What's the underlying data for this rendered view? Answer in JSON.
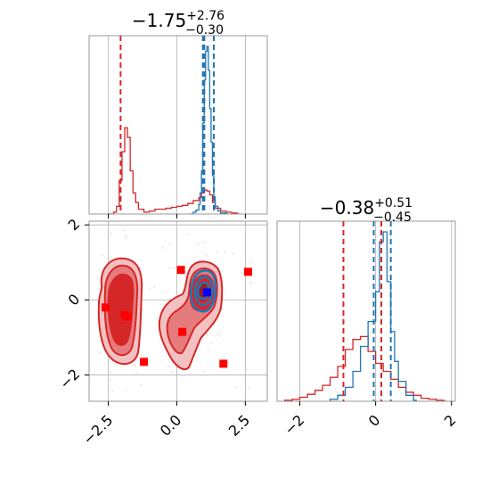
{
  "colors": {
    "red": "#d62728",
    "blue": "#1f77b4",
    "marker_red": "#ff0000",
    "marker_blue": "#0000ff",
    "grid": "#b0b0b0",
    "scatter": "#f4a6d8"
  },
  "chart_data": [
    {
      "type": "histogram",
      "panel": "top-left",
      "title": {
        "main": "−1.75",
        "sup": "+2.76",
        "sub": "−0.30"
      },
      "xlim": [
        -3.2,
        3.3
      ],
      "grid": true,
      "red_quantile_lines_x": [
        -2.05,
        1.0
      ],
      "blue_quantile_lines_x": [
        0.95,
        1.0,
        1.35
      ],
      "red_series_bins_x": [
        -2.5,
        -2.3,
        -2.2,
        -2.1,
        -2.0,
        -1.9,
        -1.8,
        -1.7,
        -1.6,
        -1.5,
        -1.4,
        -1.2,
        -1.0,
        -0.8,
        -0.6,
        -0.4,
        -0.2,
        0.0,
        0.2,
        0.4,
        0.6,
        0.8,
        0.9,
        1.0,
        1.1,
        1.2,
        1.3,
        1.4,
        1.6,
        1.8,
        2.0,
        2.2
      ],
      "red_series_counts": [
        0,
        2,
        8,
        35,
        65,
        90,
        80,
        45,
        22,
        12,
        5,
        2,
        3,
        5,
        5,
        6,
        7,
        8,
        9,
        11,
        14,
        17,
        22,
        25,
        24,
        20,
        12,
        6,
        3,
        2,
        1,
        0
      ],
      "blue_series_bins_x": [
        0.5,
        0.6,
        0.7,
        0.8,
        0.85,
        0.9,
        0.95,
        1.0,
        1.05,
        1.1,
        1.15,
        1.2,
        1.25,
        1.3,
        1.35,
        1.4,
        1.5,
        1.6,
        1.8
      ],
      "blue_series_counts": [
        0,
        2,
        4,
        10,
        22,
        45,
        95,
        140,
        170,
        175,
        150,
        110,
        75,
        40,
        18,
        8,
        3,
        1,
        0
      ],
      "x_tick_labels": []
    },
    {
      "type": "contour",
      "panel": "bottom-left",
      "xlim": [
        -3.2,
        3.3
      ],
      "ylim": [
        -2.7,
        2.1
      ],
      "grid": true,
      "x_ticks": [
        -2.5,
        0.0,
        2.5
      ],
      "x_tick_labels": [
        "−2.5",
        "0.0",
        "2.5"
      ],
      "y_ticks": [
        -2,
        0,
        2
      ],
      "y_tick_labels": [
        "−2",
        "0",
        "2"
      ],
      "red_square_points": [
        {
          "x": -2.6,
          "y": -0.2
        },
        {
          "x": -1.9,
          "y": -0.4
        },
        {
          "x": -1.8,
          "y": -0.45
        },
        {
          "x": -1.2,
          "y": -1.65
        },
        {
          "x": 0.15,
          "y": 0.8
        },
        {
          "x": 0.2,
          "y": -0.85
        },
        {
          "x": 1.1,
          "y": 0.2
        },
        {
          "x": 1.7,
          "y": -1.7
        },
        {
          "x": 2.6,
          "y": 0.75
        }
      ],
      "blue_square_points": [
        {
          "x": 1.1,
          "y": 0.2
        }
      ]
    },
    {
      "type": "histogram",
      "panel": "bottom-right",
      "title": {
        "main": "−0.38",
        "sup": "+0.51",
        "sub": "−0.45"
      },
      "xlim": [
        -2.6,
        2.1
      ],
      "grid": true,
      "x_ticks": [
        -2,
        0,
        2
      ],
      "x_tick_labels": [
        "−2",
        "0",
        "2"
      ],
      "red_quantile_lines_x": [
        -0.85,
        0.15
      ],
      "blue_quantile_lines_x": [
        -0.05,
        0.4
      ],
      "red_series_bins_x": [
        -2.4,
        -2.2,
        -2.0,
        -1.8,
        -1.6,
        -1.4,
        -1.2,
        -1.0,
        -0.8,
        -0.6,
        -0.4,
        -0.2,
        0.0,
        0.2,
        0.4,
        0.6,
        0.8,
        1.0,
        1.2,
        1.4,
        1.6,
        1.8
      ],
      "red_series_counts": [
        1,
        2,
        4,
        7,
        11,
        16,
        24,
        35,
        52,
        62,
        65,
        50,
        38,
        30,
        22,
        14,
        9,
        6,
        3,
        2,
        1,
        0
      ],
      "blue_series_bins_x": [
        -1.2,
        -1.0,
        -0.8,
        -0.6,
        -0.4,
        -0.2,
        0.0,
        0.1,
        0.2,
        0.3,
        0.4,
        0.5,
        0.6,
        0.8,
        1.0
      ],
      "blue_series_counts": [
        2,
        6,
        14,
        30,
        55,
        80,
        110,
        160,
        170,
        120,
        70,
        40,
        20,
        6,
        1
      ]
    }
  ]
}
